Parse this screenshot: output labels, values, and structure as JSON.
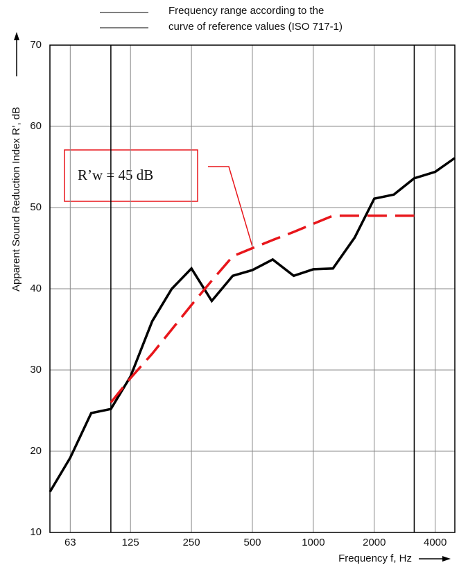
{
  "chart_data": {
    "type": "line",
    "legend": [
      "Frequency range according to the",
      "curve of reference values (ISO 717-1)"
    ],
    "xlabel": "Frequency f, Hz",
    "ylabel": "Apparent Sound Reduction Index R’, dB",
    "annotation": "R’w = 45 dB",
    "log_x": true,
    "grid": true,
    "xlim": [
      50,
      5000
    ],
    "xticks": [
      63,
      125,
      250,
      500,
      1000,
      2000,
      4000
    ],
    "ylim": [
      10,
      70
    ],
    "yticks": [
      10,
      20,
      30,
      40,
      50,
      60,
      70
    ],
    "range_lines": [
      100,
      3150
    ],
    "series": [
      {
        "color": "#000000",
        "x": [
          50,
          63,
          80,
          100,
          125,
          160,
          200,
          250,
          315,
          400,
          500,
          630,
          800,
          1000,
          1250,
          1600,
          2000,
          2500,
          3150,
          4000,
          5000
        ],
        "values": [
          15,
          19.2,
          24.7,
          25.2,
          29.2,
          36,
          40,
          42.5,
          38.5,
          41.6,
          42.3,
          43.6,
          41.6,
          42.4,
          42.5,
          46.3,
          51.1,
          51.6,
          53.6,
          54.4,
          56.1
        ]
      },
      {
        "color": "#e8161b",
        "dashed": true,
        "x": [
          100,
          125,
          160,
          200,
          250,
          315,
          400,
          500,
          630,
          800,
          1000,
          1250,
          1600,
          2000,
          2500,
          3150
        ],
        "values": [
          26,
          29,
          32,
          35,
          38,
          41,
          44,
          45,
          46,
          47,
          48,
          49,
          49,
          49,
          49,
          49
        ]
      }
    ]
  }
}
